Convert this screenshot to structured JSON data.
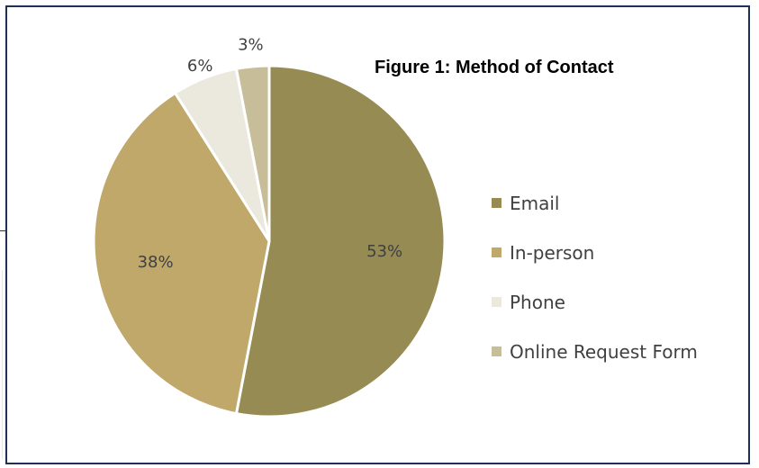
{
  "chart_data": {
    "type": "pie",
    "title": "Figure 1: Method of Contact",
    "categories": [
      "Email",
      "In-person",
      "Phone",
      "Online Request Form"
    ],
    "values": [
      53,
      38,
      6,
      3
    ],
    "labels": [
      "53%",
      "38%",
      "6%",
      "3%"
    ],
    "colors": [
      "#958b53",
      "#bfa86a",
      "#ebe8de",
      "#c7bd98"
    ],
    "legend_position": "right",
    "start_angle": "12 o'clock, clockwise"
  }
}
